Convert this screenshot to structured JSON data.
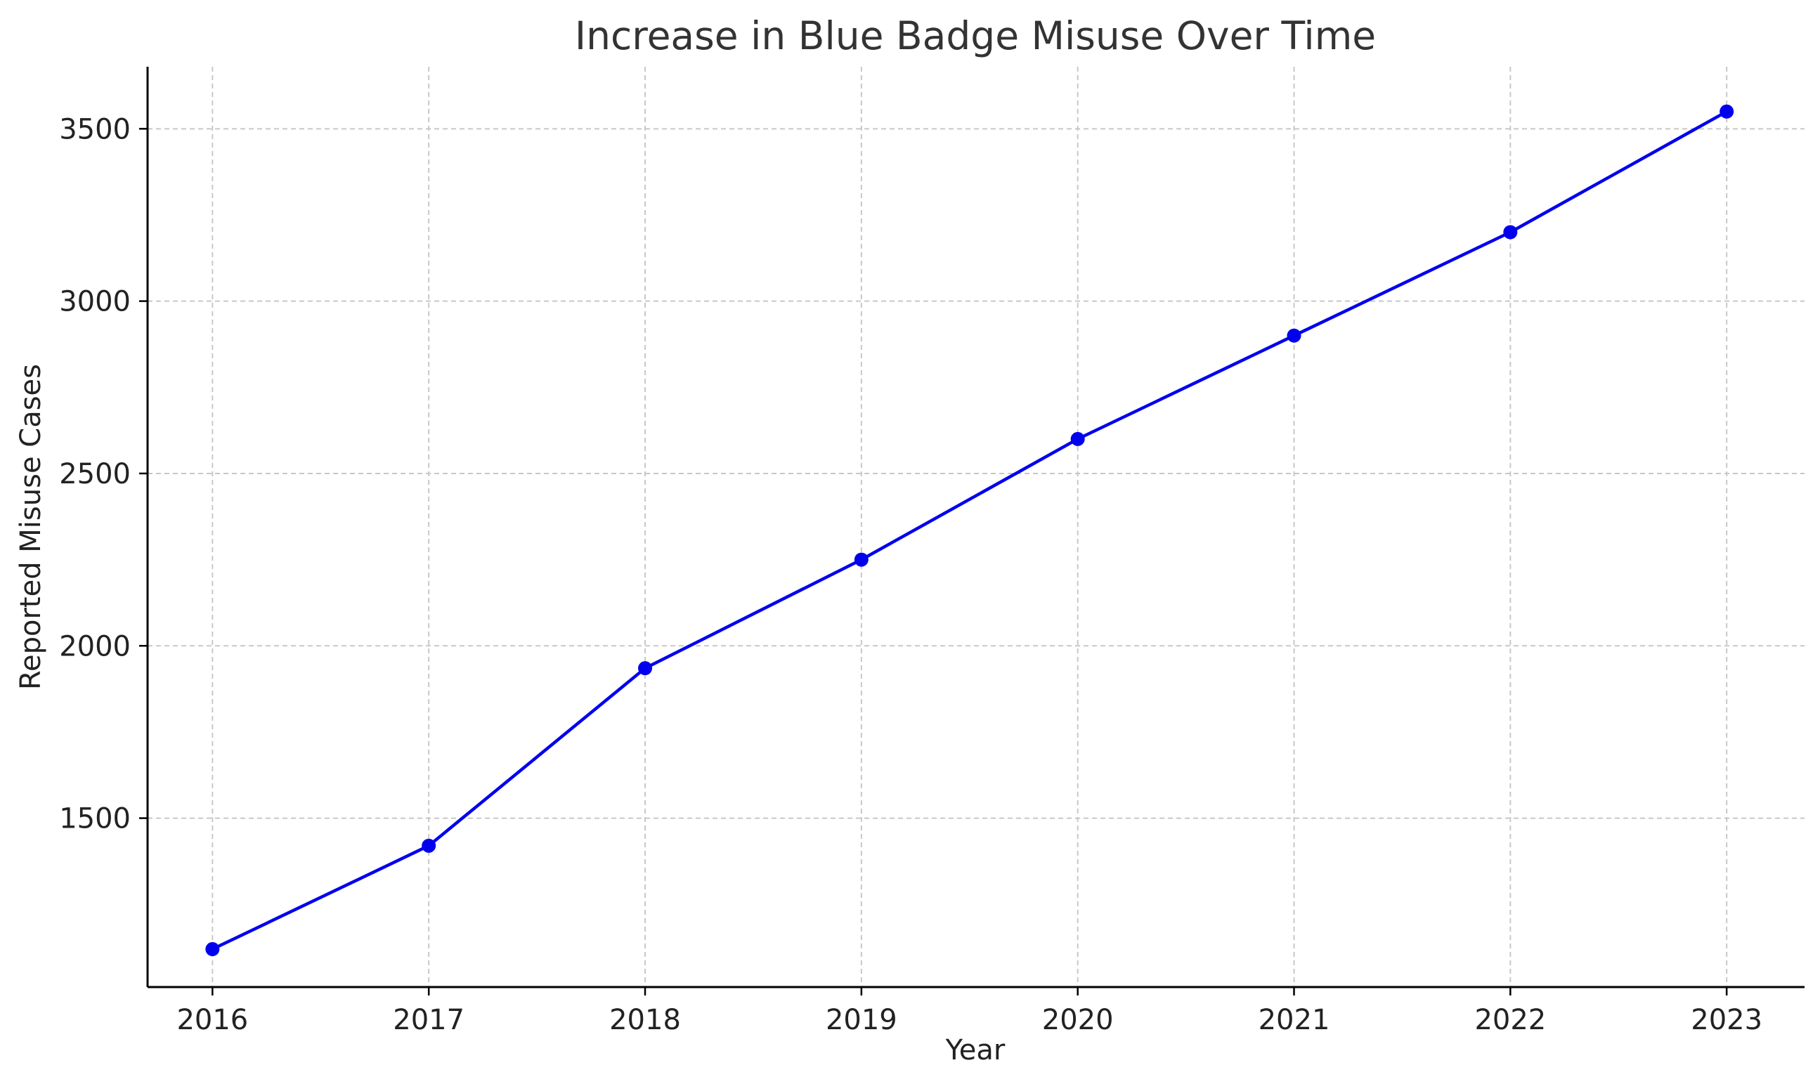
{
  "chart_data": {
    "type": "line",
    "title": "Increase in Blue Badge Misuse Over Time",
    "xlabel": "Year",
    "ylabel": "Reported Misuse Cases",
    "x": [
      2016,
      2017,
      2018,
      2019,
      2020,
      2021,
      2022,
      2023
    ],
    "series": [
      {
        "values": [
          1120,
          1420,
          1935,
          2250,
          2600,
          2900,
          3200,
          3550
        ],
        "color": "#0000ee",
        "marker": "circle"
      }
    ],
    "xlim": [
      2015.7,
      2023.36
    ],
    "ylim": [
      1010,
      3680
    ],
    "yticks": [
      1500,
      2000,
      2500,
      3000,
      3500
    ],
    "grid": true,
    "legend": "none"
  }
}
